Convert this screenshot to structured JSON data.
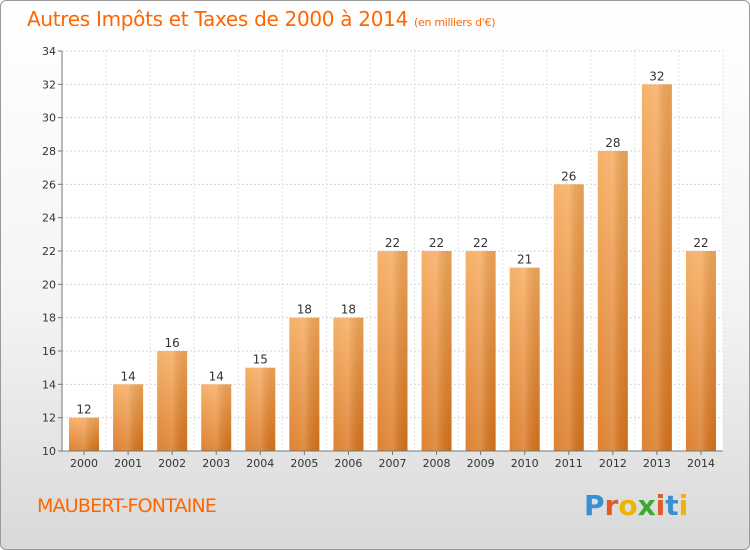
{
  "header": {
    "title": "Autres Impôts et Taxes de 2000 à 2014",
    "unit": "(en milliers d'€)"
  },
  "footer": {
    "town": "MAUBERT-FONTAINE",
    "logo_letters": [
      "P",
      "r",
      "o",
      "x",
      "i",
      "t",
      "i"
    ],
    "logo_colors": [
      "#3a8fd0",
      "#e05a2a",
      "#f0b400",
      "#3aaa35",
      "#e05a2a",
      "#3a8fd0",
      "#f0b400"
    ]
  },
  "chart_data": {
    "type": "bar",
    "title": "Autres Impôts et Taxes de 2000 à 2014",
    "subtitle": "(en milliers d'€)",
    "categories": [
      "2000",
      "2001",
      "2002",
      "2003",
      "2004",
      "2005",
      "2006",
      "2007",
      "2008",
      "2009",
      "2010",
      "2011",
      "2012",
      "2013",
      "2014"
    ],
    "values": [
      12,
      14,
      16,
      14,
      15,
      18,
      18,
      22,
      22,
      22,
      21,
      26,
      28,
      32,
      22
    ],
    "ylim": [
      10,
      34
    ],
    "yticks": [
      10,
      12,
      14,
      16,
      18,
      20,
      22,
      24,
      26,
      28,
      30,
      32,
      34
    ],
    "grid": true,
    "bar_color_light": "#f6a95a",
    "bar_color_dark": "#d9741b"
  }
}
